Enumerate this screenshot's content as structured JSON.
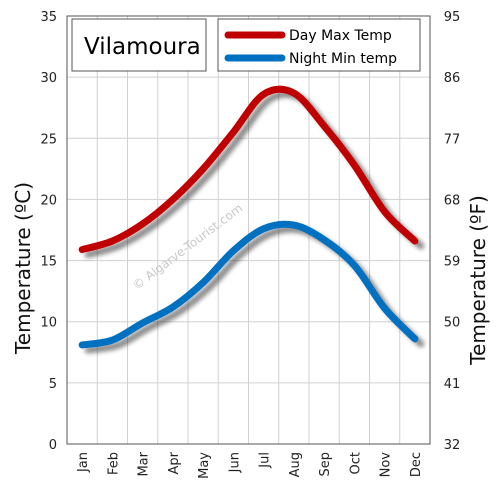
{
  "chart_data": {
    "type": "line",
    "title": "Vilamoura",
    "categories": [
      "Jan",
      "Feb",
      "Mar",
      "Apr",
      "May",
      "Jun",
      "Jul",
      "Aug",
      "Sep",
      "Oct",
      "Nov",
      "Dec"
    ],
    "series": [
      {
        "name": "Day Max Temp",
        "color": "#c00000",
        "values": [
          15.9,
          16.6,
          18.0,
          20.0,
          22.5,
          25.5,
          28.6,
          28.7,
          26.0,
          22.8,
          19.0,
          16.6
        ]
      },
      {
        "name": "Night Min temp",
        "color": "#0070c0",
        "values": [
          8.1,
          8.5,
          9.9,
          11.2,
          13.2,
          15.8,
          17.6,
          17.9,
          16.7,
          14.6,
          11.1,
          8.6
        ]
      }
    ],
    "ylabel": "Temperature  (ºC)",
    "y2label": "Temperature  (ºF)",
    "ylim": [
      0,
      35
    ],
    "yticks": [
      0,
      5,
      10,
      15,
      20,
      25,
      30,
      35
    ],
    "y2lim": [
      32,
      95
    ],
    "y2ticks": [
      32,
      41,
      50,
      59,
      68,
      77,
      86,
      95
    ],
    "grid": true,
    "legend_position": "top-right",
    "watermark": "© Algarve-Tourist.com"
  }
}
